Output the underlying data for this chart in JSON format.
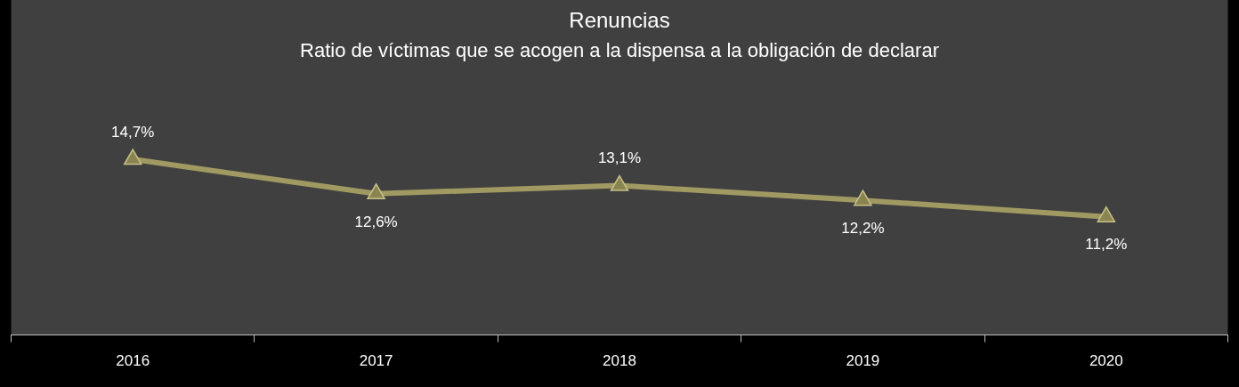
{
  "chart_data": {
    "type": "line",
    "title": "Renuncias",
    "subtitle": "Ratio de víctimas que se acogen a la dispensa a la obligación de declarar",
    "categories": [
      "2016",
      "2017",
      "2018",
      "2019",
      "2020"
    ],
    "series": [
      {
        "color": "#a09a62",
        "values": [
          14.7,
          12.6,
          13.1,
          12.2,
          11.2
        ],
        "value_labels": [
          "14,7%",
          "12,6%",
          "13,1%",
          "12,2%",
          "11,2%"
        ]
      }
    ],
    "marker": "triangle",
    "line_style": "solid",
    "grid": false,
    "legend": false
  }
}
